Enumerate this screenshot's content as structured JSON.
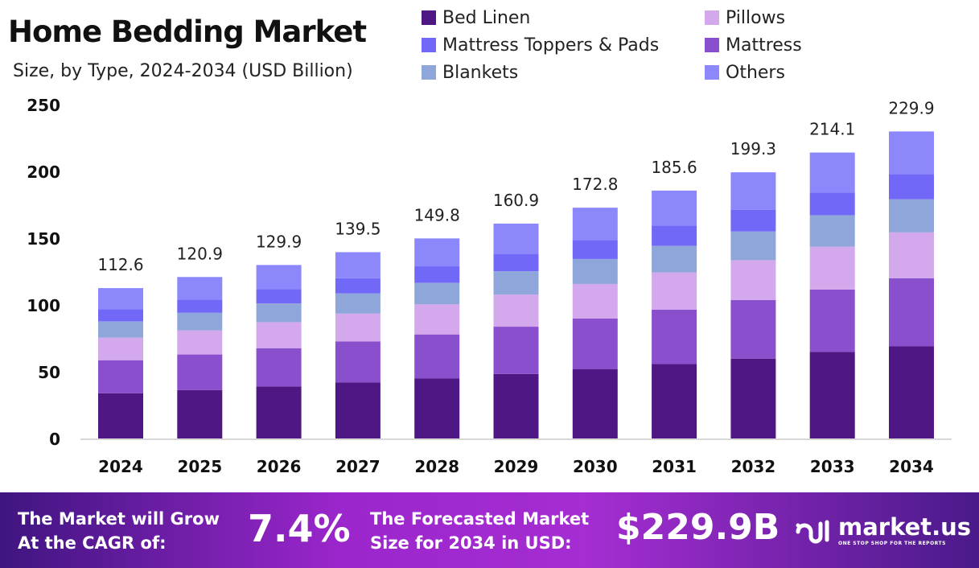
{
  "header": {
    "title": "Home Bedding Market",
    "subtitle": "Size, by Type, 2024-2034 (USD Billion)"
  },
  "chart_data": {
    "type": "bar",
    "stacked": true,
    "title": "Home Bedding Market",
    "subtitle": "Size, by Type, 2024-2034 (USD Billion)",
    "categories": [
      "2024",
      "2025",
      "2026",
      "2027",
      "2028",
      "2029",
      "2030",
      "2031",
      "2032",
      "2033",
      "2034"
    ],
    "totals": [
      "112.6",
      "120.9",
      "129.9",
      "139.5",
      "149.8",
      "160.9",
      "172.8",
      "185.6",
      "199.3",
      "214.1",
      "229.9"
    ],
    "ylim": [
      0,
      250
    ],
    "yticks": [
      "0",
      "50",
      "100",
      "150",
      "200",
      "250"
    ],
    "grid": false,
    "legend_position": "top-right",
    "series": [
      {
        "name": "Bed Linen",
        "color": "#4e1784",
        "values": [
          33.8,
          36.3,
          39.0,
          41.9,
          44.9,
          48.3,
          51.8,
          55.7,
          59.8,
          64.9,
          69.0
        ]
      },
      {
        "name": "Mattress",
        "color": "#8a4fcc",
        "values": [
          24.8,
          26.6,
          28.6,
          30.7,
          33.0,
          35.4,
          38.0,
          40.8,
          43.8,
          46.6,
          51.0
        ]
      },
      {
        "name": "Pillows",
        "color": "#d3a8ec",
        "values": [
          16.9,
          18.1,
          19.5,
          20.9,
          22.5,
          24.1,
          25.9,
          27.8,
          29.9,
          32.1,
          34.3
        ]
      },
      {
        "name": "Blankets",
        "color": "#8fa6da",
        "values": [
          12.2,
          13.1,
          14.0,
          15.1,
          16.2,
          17.4,
          18.7,
          20.0,
          21.5,
          23.6,
          24.8
        ]
      },
      {
        "name": "Mattress Toppers & Pads",
        "color": "#7268f8",
        "values": [
          9.2,
          9.9,
          10.7,
          11.4,
          12.3,
          13.2,
          14.2,
          15.2,
          16.3,
          16.9,
          18.9
        ]
      },
      {
        "name": "Others",
        "color": "#8c88fb",
        "values": [
          15.7,
          16.9,
          18.1,
          19.5,
          20.9,
          22.5,
          24.2,
          26.1,
          28.0,
          30.0,
          31.9
        ]
      }
    ]
  },
  "legend_order": [
    0,
    2,
    4,
    1,
    3,
    5
  ],
  "footer": {
    "cagr_label_1": "The Market will Grow",
    "cagr_label_2": "At the CAGR of:",
    "cagr_value": "7.4%",
    "size_label_1": "The Forecasted Market",
    "size_label_2": "Size for 2034 in USD:",
    "size_value": "$229.9B",
    "brand": "market.us",
    "brand_tagline": "ONE STOP SHOP FOR THE REPORTS"
  }
}
